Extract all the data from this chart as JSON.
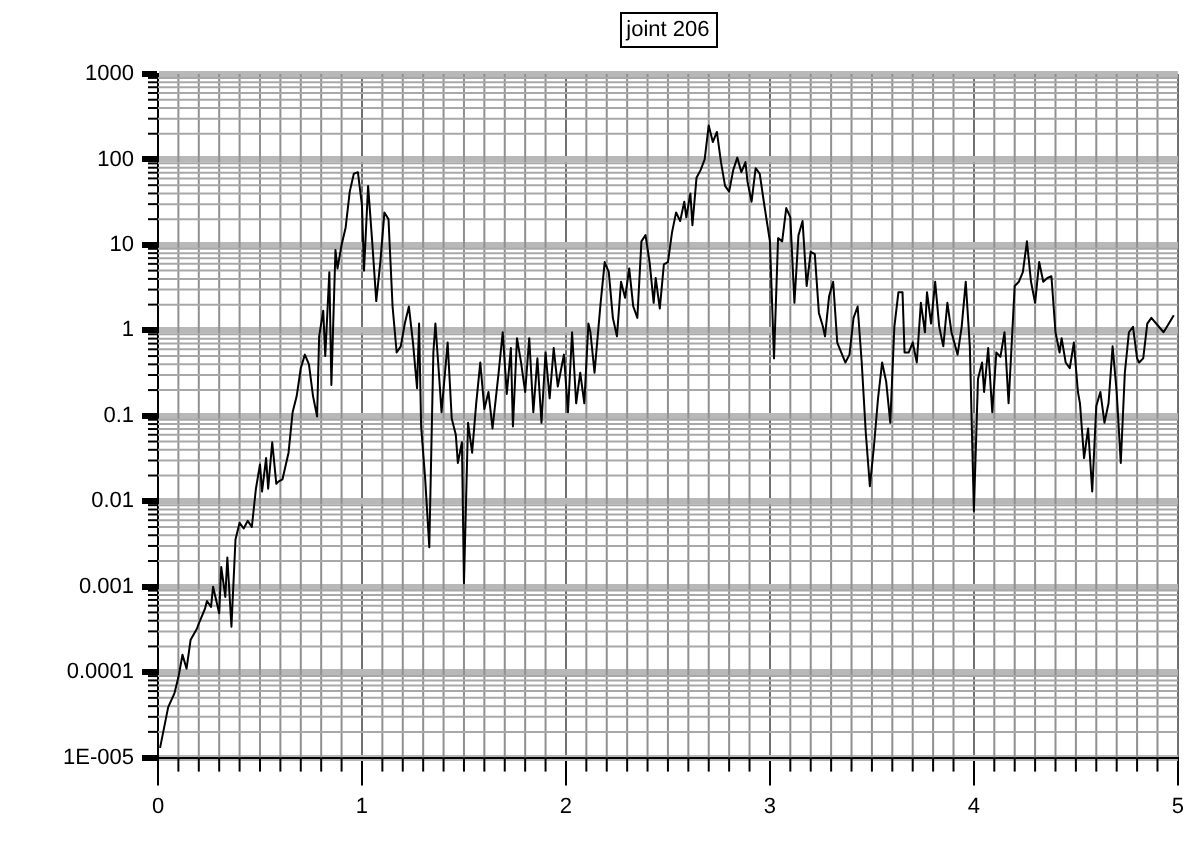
{
  "chart_data": {
    "type": "line",
    "title": "joint 206",
    "x": [
      0.01,
      0.05,
      0.08,
      0.1,
      0.12,
      0.14,
      0.16,
      0.19,
      0.2,
      0.23,
      0.24,
      0.26,
      0.27,
      0.3,
      0.31,
      0.33,
      0.34,
      0.36,
      0.38,
      0.4,
      0.42,
      0.44,
      0.46,
      0.48,
      0.5,
      0.51,
      0.53,
      0.54,
      0.56,
      0.58,
      0.59,
      0.61,
      0.64,
      0.66,
      0.68,
      0.7,
      0.72,
      0.74,
      0.76,
      0.78,
      0.79,
      0.81,
      0.82,
      0.84,
      0.85,
      0.87,
      0.88,
      0.9,
      0.92,
      0.94,
      0.96,
      0.98,
      1.0,
      1.01,
      1.03,
      1.05,
      1.07,
      1.09,
      1.11,
      1.13,
      1.15,
      1.17,
      1.19,
      1.21,
      1.23,
      1.25,
      1.27,
      1.28,
      1.29,
      1.31,
      1.33,
      1.35,
      1.36,
      1.38,
      1.39,
      1.42,
      1.44,
      1.46,
      1.47,
      1.49,
      1.5,
      1.52,
      1.54,
      1.56,
      1.58,
      1.6,
      1.62,
      1.64,
      1.67,
      1.69,
      1.71,
      1.73,
      1.74,
      1.76,
      1.78,
      1.8,
      1.82,
      1.84,
      1.86,
      1.88,
      1.9,
      1.92,
      1.94,
      1.96,
      1.99,
      2.01,
      2.03,
      2.05,
      2.07,
      2.09,
      2.11,
      2.12,
      2.14,
      2.17,
      2.19,
      2.21,
      2.23,
      2.25,
      2.27,
      2.29,
      2.31,
      2.33,
      2.35,
      2.37,
      2.39,
      2.41,
      2.43,
      2.44,
      2.46,
      2.48,
      2.5,
      2.52,
      2.54,
      2.56,
      2.58,
      2.59,
      2.61,
      2.62,
      2.64,
      2.66,
      2.68,
      2.7,
      2.72,
      2.74,
      2.76,
      2.78,
      2.8,
      2.82,
      2.84,
      2.86,
      2.88,
      2.89,
      2.91,
      2.93,
      2.95,
      2.97,
      3.0,
      3.02,
      3.04,
      3.06,
      3.08,
      3.1,
      3.12,
      3.14,
      3.16,
      3.18,
      3.2,
      3.22,
      3.24,
      3.26,
      3.27,
      3.29,
      3.31,
      3.33,
      3.35,
      3.37,
      3.39,
      3.41,
      3.43,
      3.45,
      3.47,
      3.49,
      3.51,
      3.53,
      3.55,
      3.57,
      3.59,
      3.61,
      3.63,
      3.65,
      3.66,
      3.68,
      3.7,
      3.72,
      3.74,
      3.76,
      3.77,
      3.79,
      3.81,
      3.83,
      3.85,
      3.87,
      3.89,
      3.92,
      3.94,
      3.96,
      3.98,
      4.0,
      4.02,
      4.04,
      4.05,
      4.07,
      4.09,
      4.11,
      4.13,
      4.15,
      4.17,
      4.2,
      4.22,
      4.24,
      4.26,
      4.28,
      4.3,
      4.32,
      4.34,
      4.36,
      4.38,
      4.4,
      4.42,
      4.43,
      4.45,
      4.47,
      4.49,
      4.51,
      4.52,
      4.54,
      4.56,
      4.58,
      4.6,
      4.62,
      4.64,
      4.66,
      4.68,
      4.7,
      4.72,
      4.74,
      4.76,
      4.78,
      4.8,
      4.81,
      4.83,
      4.85,
      4.87,
      4.93,
      4.98
    ],
    "series": [
      {
        "color": "#000000",
        "values": [
          1.3e-05,
          3.9e-05,
          5.6e-05,
          8.7e-05,
          0.00016,
          0.00011,
          0.00024,
          0.00032,
          0.00037,
          0.00055,
          0.00068,
          0.00058,
          0.001,
          0.00049,
          0.0017,
          0.00076,
          0.0022,
          0.00034,
          0.0036,
          0.0056,
          0.0048,
          0.0059,
          0.005,
          0.014,
          0.027,
          0.013,
          0.032,
          0.014,
          0.049,
          0.016,
          0.017,
          0.018,
          0.037,
          0.11,
          0.17,
          0.36,
          0.52,
          0.4,
          0.17,
          0.098,
          0.85,
          1.7,
          0.5,
          4.8,
          0.23,
          8.7,
          5.3,
          10,
          16,
          42,
          68,
          71,
          29,
          5.0,
          49,
          11,
          2.2,
          6.3,
          24,
          20,
          1.9,
          0.55,
          0.65,
          1.2,
          1.9,
          0.72,
          0.21,
          1.2,
          0.075,
          0.018,
          0.0029,
          0.55,
          1.2,
          0.25,
          0.11,
          0.72,
          0.093,
          0.06,
          0.028,
          0.049,
          0.0011,
          0.083,
          0.037,
          0.14,
          0.42,
          0.12,
          0.19,
          0.071,
          0.32,
          0.95,
          0.18,
          0.62,
          0.075,
          0.81,
          0.42,
          0.19,
          0.81,
          0.11,
          0.47,
          0.083,
          0.55,
          0.16,
          0.62,
          0.22,
          0.52,
          0.11,
          0.95,
          0.14,
          0.32,
          0.14,
          1.2,
          0.95,
          0.32,
          2.1,
          6.3,
          4.8,
          1.4,
          0.85,
          3.7,
          2.4,
          5.3,
          1.9,
          1.4,
          11,
          13,
          6.3,
          2.1,
          4.1,
          1.8,
          5.9,
          6.3,
          14,
          24,
          19,
          32,
          21,
          40,
          17,
          61,
          75,
          100,
          250,
          160,
          210,
          93,
          49,
          42,
          75,
          105,
          71,
          93,
          55,
          32,
          79,
          68,
          32,
          11,
          0.47,
          12,
          11,
          27,
          21,
          2.1,
          13,
          19,
          3.3,
          8.3,
          7.8,
          1.6,
          1.1,
          0.85,
          2.5,
          3.7,
          0.72,
          0.55,
          0.42,
          0.52,
          1.4,
          1.9,
          0.42,
          0.063,
          0.015,
          0.044,
          0.16,
          0.42,
          0.25,
          0.083,
          1.1,
          2.8,
          2.8,
          0.55,
          0.55,
          0.72,
          0.42,
          2.1,
          0.95,
          2.8,
          1.2,
          3.7,
          1.1,
          0.65,
          2.1,
          0.95,
          0.52,
          1.1,
          3.7,
          0.65,
          0.0077,
          0.27,
          0.42,
          0.19,
          0.62,
          0.11,
          0.55,
          0.49,
          0.95,
          0.14,
          3.3,
          3.7,
          4.8,
          11,
          3.7,
          2.1,
          6.3,
          3.7,
          4.1,
          4.3,
          0.95,
          0.55,
          0.81,
          0.42,
          0.36,
          0.72,
          0.19,
          0.14,
          0.032,
          0.071,
          0.013,
          0.13,
          0.19,
          0.083,
          0.14,
          0.65,
          0.19,
          0.028,
          0.32,
          0.95,
          1.1,
          0.47,
          0.42,
          0.47,
          1.2,
          1.4,
          0.95,
          1.5
        ]
      }
    ],
    "xlim": [
      0,
      5
    ],
    "xticks": [
      0,
      1,
      2,
      3,
      4,
      5
    ],
    "ylim": [
      1e-05,
      1000
    ],
    "yticks": [
      {
        "value": 1e-05,
        "label": "1E-005"
      },
      0.0001,
      0.001,
      0.01,
      0.1,
      1,
      10,
      100,
      1000
    ],
    "log": "y",
    "grid": true,
    "legend": false,
    "marker": "none",
    "line_style": "solid"
  }
}
